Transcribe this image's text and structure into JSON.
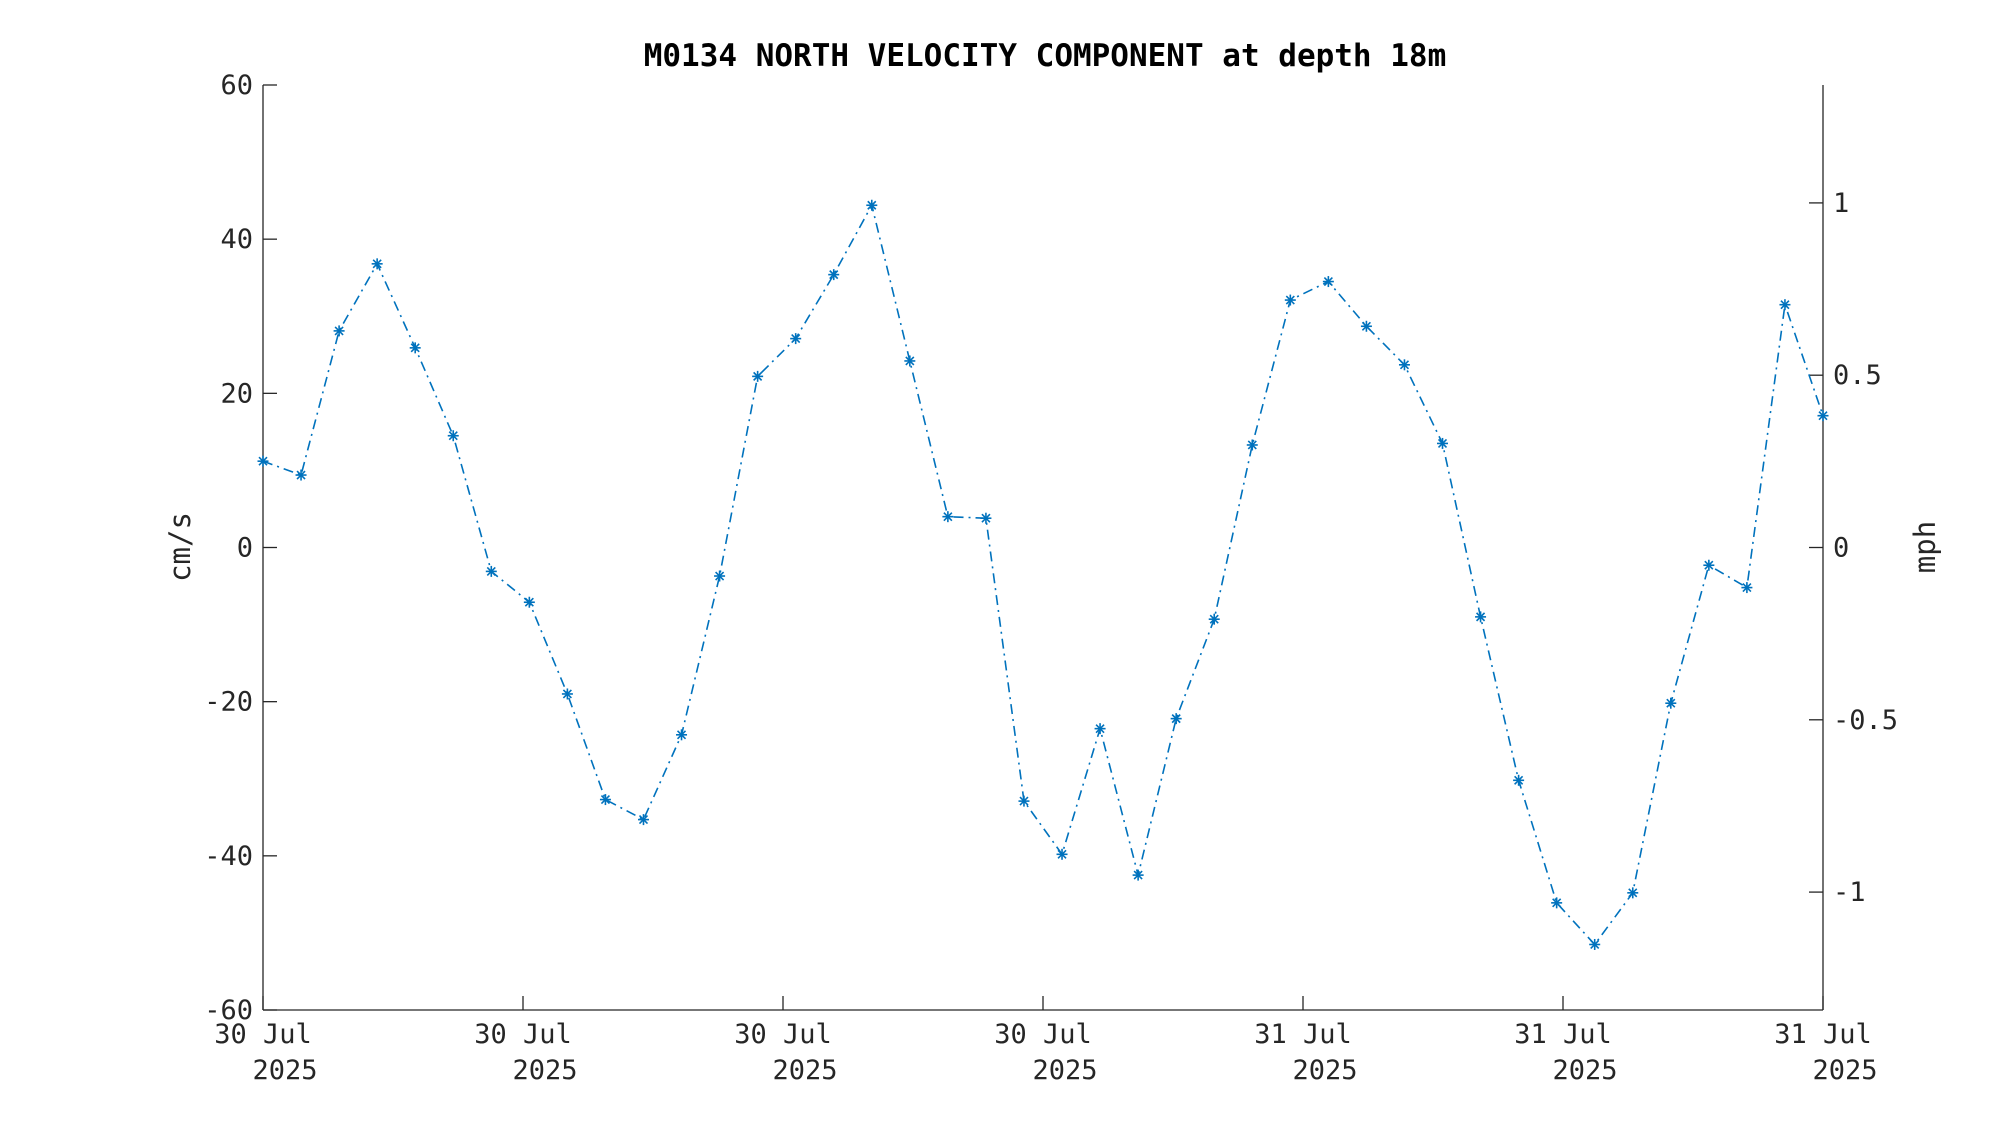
{
  "chart_data": {
    "type": "line",
    "title": "M0134 NORTH VELOCITY COMPONENT at depth 18m",
    "ylabel": "cm/s",
    "y2label": "mph",
    "ylim": [
      -60,
      60
    ],
    "yticks": [
      60,
      40,
      20,
      0,
      -20,
      -40,
      -60
    ],
    "y2ticks": [
      {
        "value": 1,
        "label": "1"
      },
      {
        "value": 0.5,
        "label": "0.5"
      },
      {
        "value": 0,
        "label": "0"
      },
      {
        "value": -0.5,
        "label": "-0.5"
      },
      {
        "value": -1,
        "label": "-1"
      }
    ],
    "xticks": [
      {
        "day": "30 Jul",
        "year": "2025"
      },
      {
        "day": "30 Jul",
        "year": "2025"
      },
      {
        "day": "30 Jul",
        "year": "2025"
      },
      {
        "day": "30 Jul",
        "year": "2025"
      },
      {
        "day": "31 Jul",
        "year": "2025"
      },
      {
        "day": "31 Jul",
        "year": "2025"
      },
      {
        "day": "31 Jul",
        "year": "2025"
      }
    ],
    "grid": false,
    "legend": "none",
    "marker": "asterisk",
    "line_style": "dash-dot",
    "color": "#0072BD",
    "series": [
      {
        "values": [
          11.2,
          9.4,
          28.1,
          36.8,
          25.9,
          14.5,
          -3.1,
          -7.1,
          -19.0,
          -32.7,
          -35.3,
          -24.3,
          -3.7,
          22.2,
          27.1,
          35.4,
          44.4,
          24.2,
          4.0,
          3.8,
          -32.9,
          -39.8,
          -23.5,
          -42.5,
          -22.2,
          -9.3,
          13.3,
          32.1,
          34.5,
          28.7,
          23.7,
          13.5,
          -9.0,
          -30.2,
          -46.1,
          -51.5,
          -44.8,
          -20.2,
          -2.3,
          -5.2,
          31.5,
          17.1
        ]
      }
    ]
  }
}
